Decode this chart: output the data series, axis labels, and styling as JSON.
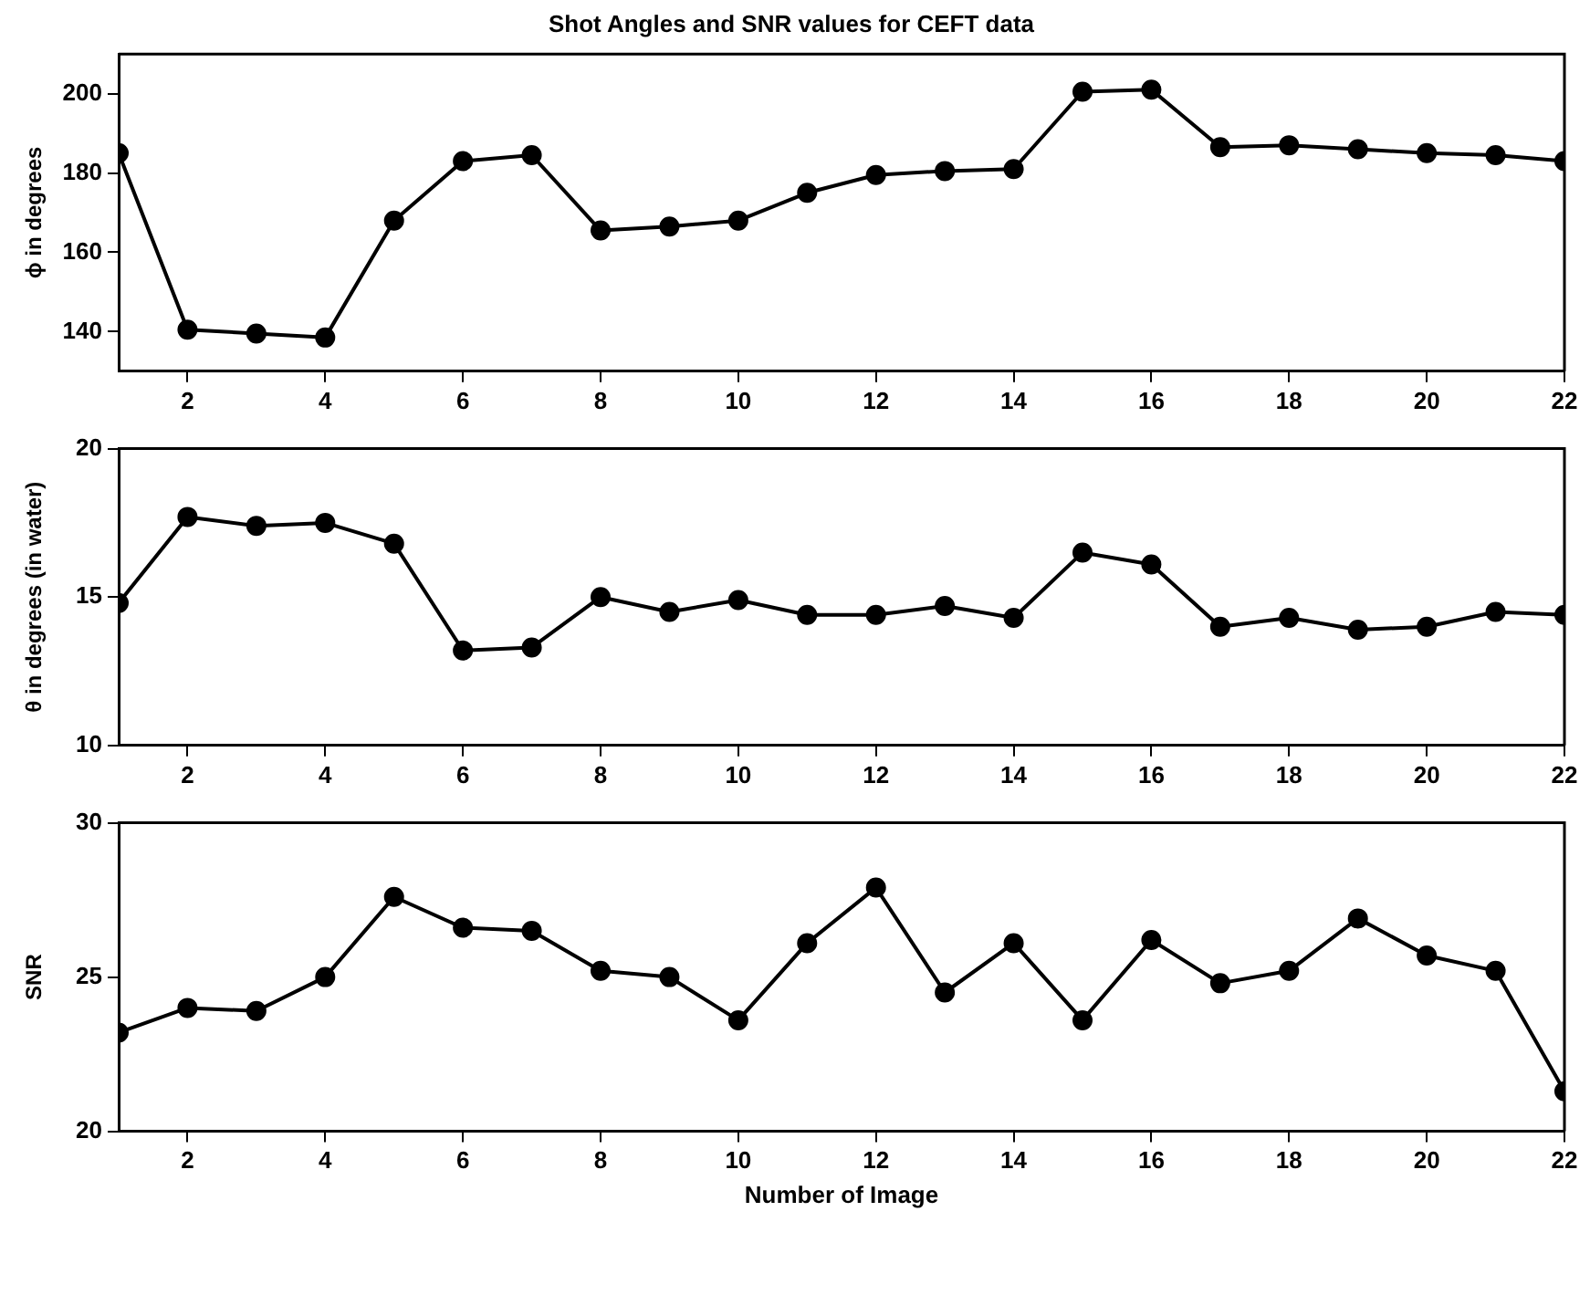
{
  "chart_data": [
    {
      "type": "line",
      "title": "Shot Angles and SNR values for CEFT data",
      "ylabel": "ϕ in degrees",
      "marker": "circle",
      "line_style": "solid",
      "x": [
        1,
        2,
        3,
        4,
        5,
        6,
        7,
        8,
        9,
        10,
        11,
        12,
        13,
        14,
        15,
        16,
        17,
        18,
        19,
        20,
        21,
        22
      ],
      "series": [
        {
          "color": "#000000",
          "values": [
            185,
            140.5,
            139.5,
            138.5,
            168,
            183,
            184.5,
            165.5,
            166.5,
            168,
            175,
            179.5,
            180.5,
            181,
            200.5,
            201,
            186.5,
            187,
            186,
            185,
            184.5,
            183
          ]
        }
      ],
      "xlim": [
        1,
        22
      ],
      "xticks": [
        2,
        4,
        6,
        8,
        10,
        12,
        14,
        16,
        18,
        20,
        22
      ],
      "ylim": [
        130,
        210
      ],
      "yticks": [
        140,
        160,
        180,
        200
      ]
    },
    {
      "type": "line",
      "ylabel": "θ in degrees (in water)",
      "marker": "circle",
      "line_style": "solid",
      "x": [
        1,
        2,
        3,
        4,
        5,
        6,
        7,
        8,
        9,
        10,
        11,
        12,
        13,
        14,
        15,
        16,
        17,
        18,
        19,
        20,
        21,
        22
      ],
      "series": [
        {
          "color": "#000000",
          "values": [
            14.8,
            17.7,
            17.4,
            17.5,
            16.8,
            13.2,
            13.3,
            15.0,
            14.5,
            14.9,
            14.4,
            14.4,
            14.7,
            14.3,
            16.5,
            16.1,
            14.0,
            14.3,
            13.9,
            14.0,
            14.5,
            14.4
          ]
        }
      ],
      "xlim": [
        1,
        22
      ],
      "xticks": [
        2,
        4,
        6,
        8,
        10,
        12,
        14,
        16,
        18,
        20,
        22
      ],
      "ylim": [
        10,
        20
      ],
      "yticks": [
        10,
        15,
        20
      ]
    },
    {
      "type": "line",
      "xlabel": "Number of Image",
      "ylabel": "SNR",
      "marker": "circle",
      "line_style": "solid",
      "x": [
        1,
        2,
        3,
        4,
        5,
        6,
        7,
        8,
        9,
        10,
        11,
        12,
        13,
        14,
        15,
        16,
        17,
        18,
        19,
        20,
        21,
        22
      ],
      "series": [
        {
          "color": "#000000",
          "values": [
            23.2,
            24.0,
            23.9,
            25.0,
            27.6,
            26.6,
            26.5,
            25.2,
            25.0,
            23.6,
            26.1,
            27.9,
            24.5,
            26.1,
            23.6,
            26.2,
            24.8,
            25.2,
            26.9,
            25.7,
            25.2,
            21.3
          ]
        }
      ],
      "xlim": [
        1,
        22
      ],
      "xticks": [
        2,
        4,
        6,
        8,
        10,
        12,
        14,
        16,
        18,
        20,
        22
      ],
      "ylim": [
        20,
        30
      ],
      "yticks": [
        20,
        25,
        30
      ]
    }
  ]
}
